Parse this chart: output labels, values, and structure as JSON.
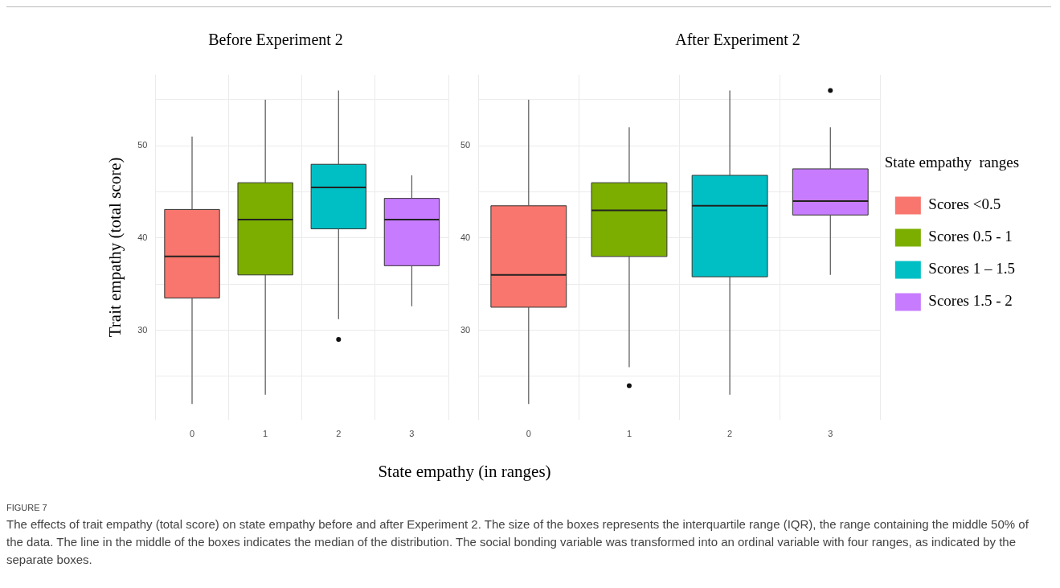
{
  "chart_data": [
    {
      "type": "box",
      "title": "Before Experiment 2",
      "ylabel": "Trait empathy (total score)",
      "xlabel": "State empathy  (in ranges)",
      "categories": [
        "0",
        "1",
        "2",
        "3"
      ],
      "ylim": [
        20.3,
        57.7
      ],
      "yticks": [
        {
          "value": 25,
          "label": null
        },
        30,
        {
          "value": 35,
          "label": null
        },
        40,
        {
          "value": 45,
          "label": null
        },
        50,
        {
          "value": 55,
          "label": null
        }
      ],
      "grid": true,
      "legend": false,
      "series": [
        {
          "color": "#f8766d",
          "boxes": [
            {
              "low": 22,
              "q1": 33.5,
              "median": 38,
              "q3": 43.1,
              "high": 51
            },
            null,
            null,
            null
          ]
        },
        {
          "color": "#7cae00",
          "boxes": [
            null,
            {
              "low": 23,
              "q1": 36,
              "median": 42,
              "q3": 46,
              "high": 55
            },
            null,
            null
          ]
        },
        {
          "color": "#00bfc4",
          "boxes": [
            null,
            null,
            {
              "low": 31.2,
              "q1": 41,
              "median": 45.5,
              "q3": 48,
              "high": 56,
              "outliers": [
                29
              ]
            },
            null
          ]
        },
        {
          "color": "#c77cff",
          "boxes": [
            null,
            null,
            null,
            {
              "low": 32.6,
              "q1": 37,
              "median": 42,
              "q3": 44.3,
              "high": 46.8
            }
          ]
        }
      ],
      "annotations": [
        "FIGURE 7",
        "The effects of trait empathy (total score) on state empathy before and after Experiment 2. The size of the boxes represents the interquartile range (IQR), the range containing the middle 50% of the data. The line in the middle of the boxes indicates the median of the distribution. The social bonding variable was transformed into an ordinal variable with four ranges, as indicated by the separate boxes."
      ]
    },
    {
      "type": "box",
      "title": "After Experiment 2",
      "categories": [
        "0",
        "1",
        "2",
        "3"
      ],
      "ylim": [
        20.3,
        57.7
      ],
      "yticks": [
        {
          "value": 25,
          "label": null
        },
        30,
        {
          "value": 35,
          "label": null
        },
        40,
        {
          "value": 45,
          "label": null
        },
        50,
        {
          "value": 55,
          "label": null
        }
      ],
      "grid": true,
      "legend": "right",
      "legend_title": "State empathy  ranges",
      "series": [
        {
          "name": "Scores <0.5",
          "color": "#f8766d",
          "boxes": [
            {
              "low": 22,
              "q1": 32.5,
              "median": 36,
              "q3": 43.5,
              "high": 55
            },
            null,
            null,
            null
          ]
        },
        {
          "name": "Scores 0.5 - 1",
          "color": "#7cae00",
          "boxes": [
            null,
            {
              "low": 26,
              "q1": 38,
              "median": 43,
              "q3": 46,
              "high": 52,
              "outliers": [
                24
              ]
            },
            null,
            null
          ]
        },
        {
          "name": "Scores 1 – 1.5",
          "color": "#00bfc4",
          "boxes": [
            null,
            null,
            {
              "low": 23,
              "q1": 35.8,
              "median": 43.5,
              "q3": 46.8,
              "high": 56
            },
            null
          ]
        },
        {
          "name": "Scores 1.5 - 2",
          "color": "#c77cff",
          "boxes": [
            null,
            null,
            null,
            {
              "low": 36,
              "q1": 42.5,
              "median": 44,
              "q3": 47.5,
              "high": 52,
              "outliers": [
                56
              ]
            }
          ]
        }
      ]
    }
  ]
}
